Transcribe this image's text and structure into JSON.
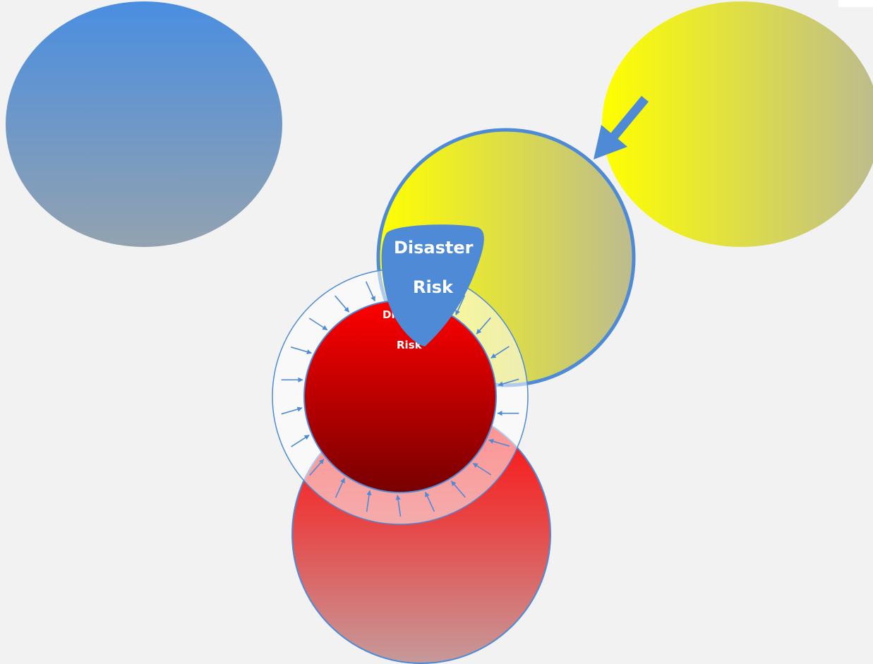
{
  "diagram": {
    "shapes": {
      "hazard_circle": {
        "label": ""
      },
      "vulnerability_circle": {
        "label": ""
      },
      "exposure_circle": {
        "label": ""
      },
      "capacity_ring": {
        "label": ""
      },
      "risk_core": {
        "label_line1": "Disaster",
        "label_line2": "Risk"
      },
      "risk_drop": {
        "label_line1": "Disaster",
        "label_line2": "Risk"
      }
    },
    "colors": {
      "background": "#f2f2f2",
      "accent_blue": "#4e8ad6",
      "yellow": "#ffff00",
      "red": "#ff0000",
      "dark_red": "#7a0000",
      "steel_blue": "#8ea4b8",
      "white": "#ffffff"
    },
    "arrow_count": 22
  }
}
